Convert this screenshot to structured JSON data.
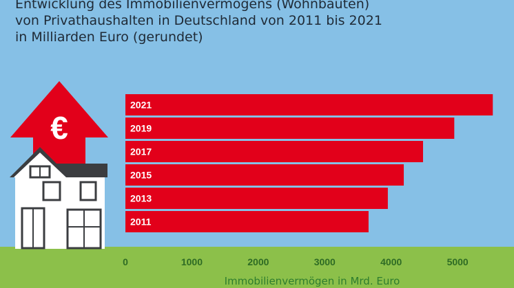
{
  "title_lines": [
    "Entwicklung des Immobilienvermögens (Wohnbauten)",
    "von Privathaushalten in Deutschland von 2011 bis 2021",
    "in Milliarden Euro (gerundet)"
  ],
  "colors": {
    "background": "#86c0e6",
    "ground": "#8cc04a",
    "bar": "#e2001a",
    "bar_text": "#ffffff",
    "tick_text": "#2e6b24",
    "house_wall": "#ffffff",
    "house_roof": "#3b3d40"
  },
  "icons": [
    "house-icon",
    "euro-arrow-icon"
  ],
  "chart_data": {
    "type": "bar",
    "orientation": "horizontal",
    "categories": [
      "2021",
      "2019",
      "2017",
      "2015",
      "2013",
      "2011"
    ],
    "values": [
      5530,
      4950,
      4480,
      4190,
      3950,
      3660
    ],
    "xlabel": "Immobilienvermögen in Mrd. Euro",
    "ylabel": "",
    "xlim": [
      0,
      5600
    ],
    "xticks": [
      0,
      1000,
      2000,
      3000,
      4000,
      5000
    ],
    "grid": false,
    "legend": false
  }
}
